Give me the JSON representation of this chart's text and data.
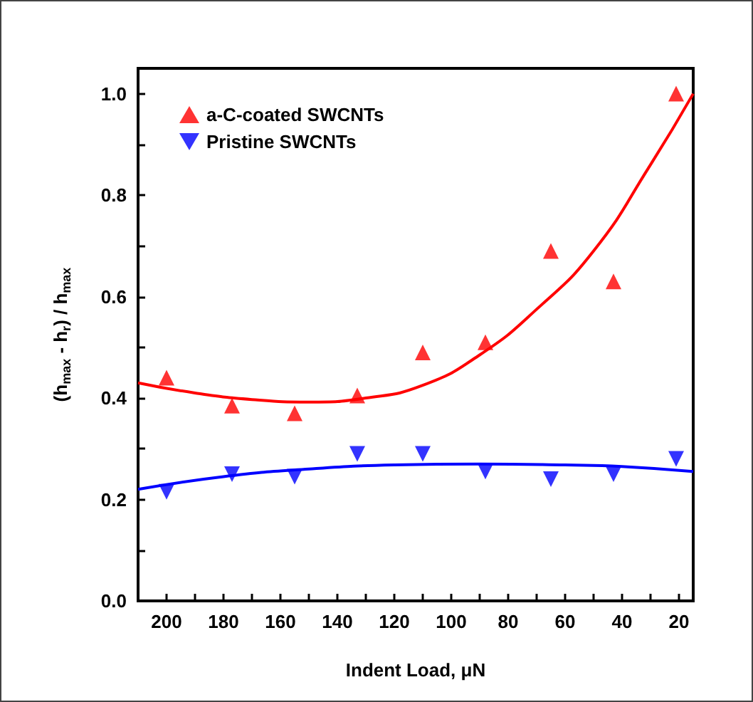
{
  "chart_data": {
    "type": "scatter",
    "xlabel": "Indent Load, μN",
    "ylabel": "(h$_{max}$ - h$_{r}$) / h$_{max}$",
    "x": [
      200,
      177,
      155,
      133,
      110,
      88,
      65,
      43,
      21
    ],
    "series": [
      {
        "name": "a-C-coated SWCNTs",
        "color": "#ff0000",
        "marker": "triangle",
        "values": [
          0.44,
          0.385,
          0.37,
          0.405,
          0.49,
          0.51,
          0.69,
          0.63,
          1.0
        ]
      },
      {
        "name": "Pristine SWCNTs",
        "color": "#0000ff",
        "marker": "triangle_down",
        "values": [
          0.215,
          0.25,
          0.245,
          0.29,
          0.29,
          0.255,
          0.24,
          0.25,
          0.28
        ]
      },
      {
        "type": "line",
        "color": "#ff0000",
        "marker": "none",
        "x": [
          210,
          190,
          170,
          150,
          130,
          110,
          90,
          70,
          50,
          30,
          15
        ],
        "values": [
          0.43,
          0.41,
          0.397,
          0.392,
          0.4,
          0.425,
          0.485,
          0.575,
          0.69,
          0.86,
          1.0
        ]
      },
      {
        "type": "line",
        "color": "#0000ff",
        "marker": "none",
        "x": [
          210,
          180,
          150,
          120,
          90,
          60,
          40,
          15
        ],
        "values": [
          0.22,
          0.245,
          0.26,
          0.268,
          0.27,
          0.268,
          0.265,
          0.255
        ]
      }
    ],
    "xlim": [
      210,
      15
    ],
    "xticks": [
      200,
      {
        "value": 190,
        "label": null
      },
      180,
      {
        "value": 170,
        "label": null
      },
      160,
      {
        "value": 150,
        "label": null
      },
      140,
      {
        "value": 130,
        "label": null
      },
      120,
      {
        "value": 110,
        "label": null
      },
      100,
      {
        "value": 90,
        "label": null
      },
      80,
      {
        "value": 70,
        "label": null
      },
      60,
      {
        "value": 50,
        "label": null
      },
      40,
      {
        "value": 30,
        "label": null
      },
      20
    ],
    "ylim": [
      0,
      1.05
    ],
    "yticks": [
      {
        "value": 0,
        "label": "0.0"
      },
      {
        "value": 0.1,
        "label": null
      },
      0.2,
      {
        "value": 0.3,
        "label": null
      },
      0.4,
      {
        "value": 0.5,
        "label": null
      },
      0.6,
      {
        "value": 0.7,
        "label": null
      },
      0.8,
      {
        "value": 0.9,
        "label": null
      },
      {
        "value": 1,
        "label": "1.0"
      }
    ],
    "legend": "top left",
    "grid": false
  }
}
